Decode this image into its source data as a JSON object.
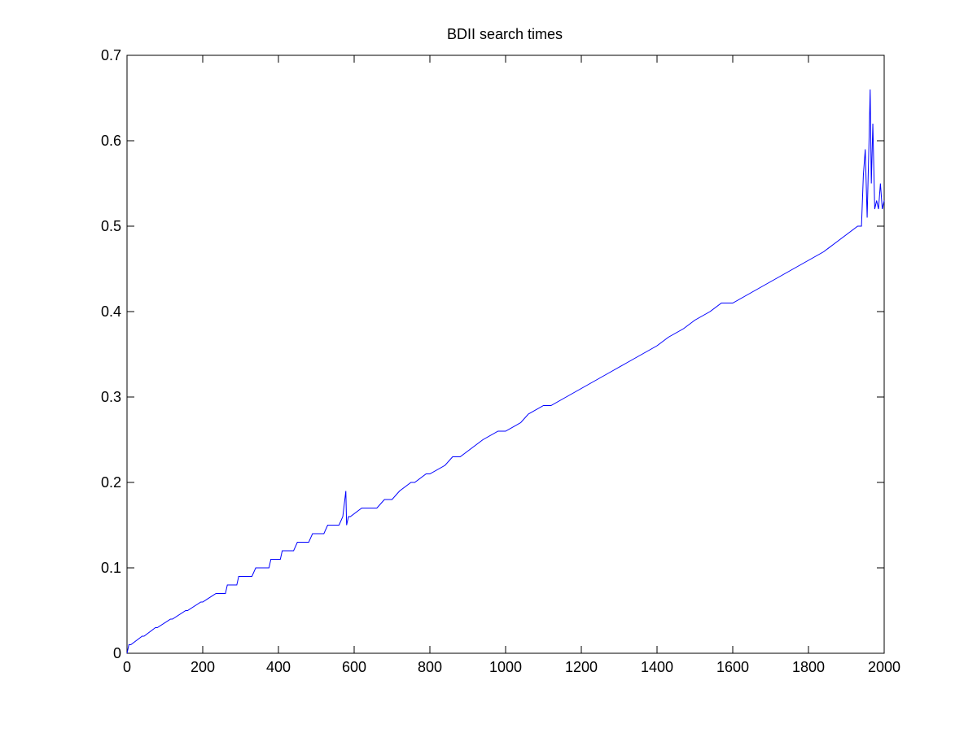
{
  "chart_data": {
    "type": "line",
    "title": "BDII search times",
    "xlabel": "",
    "ylabel": "",
    "xlim": [
      0,
      2000
    ],
    "ylim": [
      0,
      0.7
    ],
    "x_ticks": [
      0,
      200,
      400,
      600,
      800,
      1000,
      1200,
      1400,
      1600,
      1800,
      2000
    ],
    "y_ticks": [
      0,
      0.1,
      0.2,
      0.3,
      0.4,
      0.5,
      0.6,
      0.7
    ],
    "x_tick_labels": [
      "0",
      "200",
      "400",
      "600",
      "800",
      "1000",
      "1200",
      "1400",
      "1600",
      "1800",
      "2000"
    ],
    "y_tick_labels": [
      "0",
      "0.1",
      "0.2",
      "0.3",
      "0.4",
      "0.5",
      "0.6",
      "0.7"
    ],
    "grid": false,
    "line_color": "#0000ff",
    "series": [
      {
        "x": [
          0,
          5,
          10,
          40,
          45,
          75,
          80,
          115,
          120,
          155,
          160,
          195,
          200,
          235,
          240,
          260,
          265,
          290,
          295,
          330,
          340,
          375,
          380,
          405,
          410,
          440,
          450,
          480,
          490,
          520,
          530,
          560,
          570,
          578,
          580,
          585,
          590,
          620,
          640,
          660,
          680,
          700,
          720,
          750,
          760,
          790,
          800,
          840,
          860,
          880,
          910,
          940,
          980,
          1000,
          1040,
          1060,
          1100,
          1120,
          1160,
          1200,
          1240,
          1280,
          1320,
          1360,
          1400,
          1430,
          1470,
          1500,
          1540,
          1570,
          1600,
          1640,
          1680,
          1720,
          1760,
          1800,
          1840,
          1870,
          1900,
          1930,
          1940,
          1945,
          1950,
          1955,
          1960,
          1963,
          1966,
          1970,
          1975,
          1980,
          1985,
          1990,
          1995,
          2000
        ],
        "y": [
          0.0,
          0.01,
          0.01,
          0.02,
          0.02,
          0.03,
          0.03,
          0.04,
          0.04,
          0.05,
          0.05,
          0.06,
          0.06,
          0.07,
          0.07,
          0.07,
          0.08,
          0.08,
          0.09,
          0.09,
          0.1,
          0.1,
          0.11,
          0.11,
          0.12,
          0.12,
          0.13,
          0.13,
          0.14,
          0.14,
          0.15,
          0.15,
          0.16,
          0.19,
          0.15,
          0.16,
          0.16,
          0.17,
          0.17,
          0.17,
          0.18,
          0.18,
          0.19,
          0.2,
          0.2,
          0.21,
          0.21,
          0.22,
          0.23,
          0.23,
          0.24,
          0.25,
          0.26,
          0.26,
          0.27,
          0.28,
          0.29,
          0.29,
          0.3,
          0.31,
          0.32,
          0.33,
          0.34,
          0.35,
          0.36,
          0.37,
          0.38,
          0.39,
          0.4,
          0.41,
          0.41,
          0.42,
          0.43,
          0.44,
          0.45,
          0.46,
          0.47,
          0.48,
          0.49,
          0.5,
          0.5,
          0.56,
          0.59,
          0.51,
          0.6,
          0.66,
          0.55,
          0.62,
          0.52,
          0.53,
          0.52,
          0.55,
          0.52,
          0.53
        ]
      }
    ]
  }
}
